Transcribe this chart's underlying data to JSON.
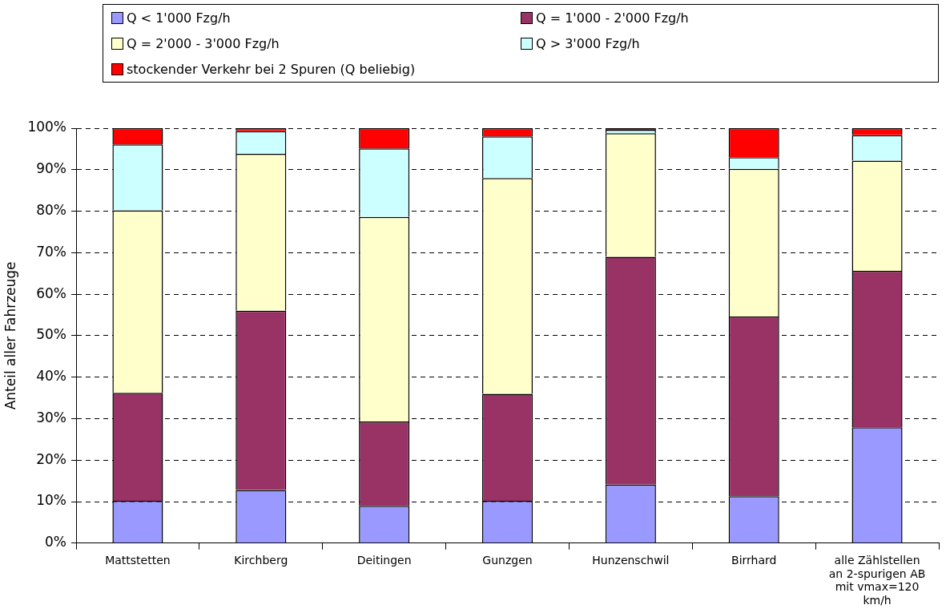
{
  "chart_data": {
    "type": "bar",
    "stacked": true,
    "ylabel": "Anteil aller Fahrzeuge",
    "categories": [
      "Mattstetten",
      "Kirchberg",
      "Deitingen",
      "Gunzgen",
      "Hunzenschwil",
      "Birrhard",
      "alle Zählstellen an 2-spurigen AB mit vmax=120 km/h"
    ],
    "series": [
      {
        "name": "Q < 1'000 Fzg/h",
        "color": "#9999ff",
        "values": [
          10.2,
          12.8,
          9,
          10.2,
          14.1,
          11.3,
          27.9
        ]
      },
      {
        "name": "Q = 1'000 - 2'000 Fzg/h",
        "color": "#993366",
        "values": [
          26,
          43.2,
          20.3,
          25.8,
          54.9,
          43.3,
          37.7
        ]
      },
      {
        "name": "Q = 2'000 - 3'000 Fzg/h",
        "color": "#ffffcc",
        "values": [
          44,
          37.8,
          49.3,
          52,
          29.8,
          35.6,
          26.6
        ]
      },
      {
        "name": "Q > 3'000 Fzg/h",
        "color": "#ccffff",
        "values": [
          15.9,
          5.5,
          16.5,
          10,
          0.8,
          2.8,
          6.1
        ]
      },
      {
        "name": "stockender Verkehr bei 2 Spuren (Q beliebig)",
        "color": "#ff0000",
        "values": [
          3.9,
          0.7,
          4.9,
          2,
          0.4,
          7,
          1.7
        ]
      }
    ],
    "ylim": [
      0,
      100
    ],
    "yticks": [
      {
        "value": 0,
        "label": "0%"
      },
      {
        "value": 10,
        "label": "10%"
      },
      {
        "value": 20,
        "label": "20%"
      },
      {
        "value": 30,
        "label": "30%"
      },
      {
        "value": 40,
        "label": "40%"
      },
      {
        "value": 50,
        "label": "50%"
      },
      {
        "value": 60,
        "label": "60%"
      },
      {
        "value": 70,
        "label": "70%"
      },
      {
        "value": 80,
        "label": "80%"
      },
      {
        "value": 90,
        "label": "90%"
      },
      {
        "value": 100,
        "label": "100%"
      }
    ],
    "grid": "y",
    "legend": "top"
  }
}
